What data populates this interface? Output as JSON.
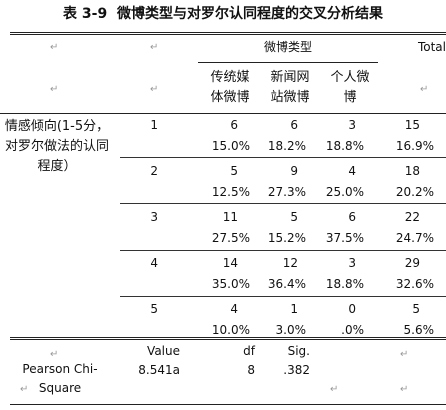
{
  "title": {
    "label": "表 3-9",
    "text": "微博类型与对罗尔认同程度的交叉分析结果"
  },
  "mark": "↵",
  "table": {
    "group_header": "微博类型",
    "total_header": "Total",
    "columns": [
      "传统媒体微博",
      "新闻网站微博",
      "个人微博"
    ],
    "row_header": "情感倾向(1-5分，对罗尔做法的认同程度）",
    "rows": [
      {
        "level": "1",
        "counts": [
          6,
          6,
          3,
          15
        ],
        "percents": [
          "15.0%",
          "18.2%",
          "18.8%",
          "16.9%"
        ]
      },
      {
        "level": "2",
        "counts": [
          5,
          9,
          4,
          18
        ],
        "percents": [
          "12.5%",
          "27.3%",
          "25.0%",
          "20.2%"
        ]
      },
      {
        "level": "3",
        "counts": [
          11,
          5,
          6,
          22
        ],
        "percents": [
          "27.5%",
          "15.2%",
          "37.5%",
          "24.7%"
        ]
      },
      {
        "level": "4",
        "counts": [
          14,
          12,
          3,
          29
        ],
        "percents": [
          "35.0%",
          "36.4%",
          "18.8%",
          "32.6%"
        ]
      },
      {
        "level": "5",
        "counts": [
          4,
          1,
          0,
          5
        ],
        "percents": [
          "10.0%",
          "3.0%",
          ".0%",
          "5.6%"
        ]
      }
    ]
  },
  "test": {
    "headers": [
      "Value",
      "df",
      "Sig."
    ],
    "name": "Pearson Chi-Square",
    "values": [
      "8.541a",
      "8",
      ".382"
    ]
  }
}
